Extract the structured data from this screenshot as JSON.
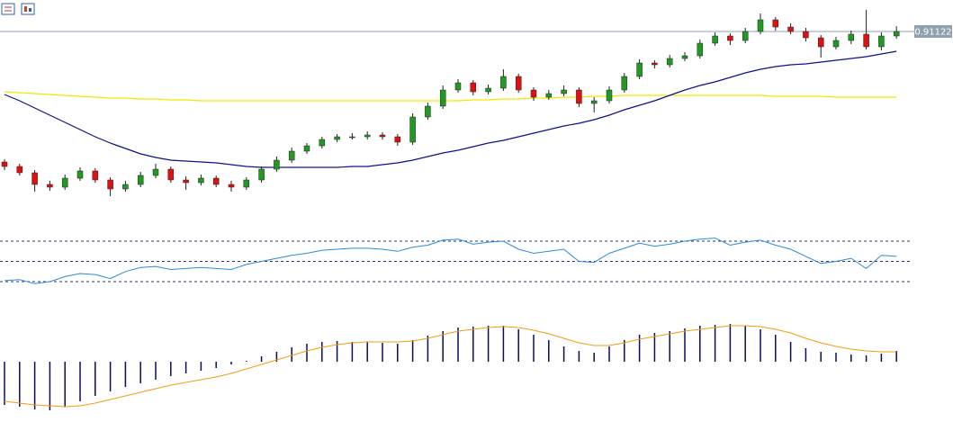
{
  "chart_data": [
    {
      "type": "candlestick",
      "open": [
        0.90397,
        0.90372,
        0.90337,
        0.90272,
        0.90257,
        0.90307,
        0.90347,
        0.90297,
        0.90247,
        0.90272,
        0.90322,
        0.90357,
        0.90297,
        0.90282,
        0.90307,
        0.90272,
        0.90257,
        0.90297,
        0.90357,
        0.90407,
        0.90457,
        0.90487,
        0.90522,
        0.90537,
        0.90537,
        0.90547,
        0.90537,
        0.90507,
        0.90647,
        0.90707,
        0.90797,
        0.90837,
        0.90787,
        0.90807,
        0.90872,
        0.90797,
        0.90757,
        0.90777,
        0.90797,
        0.90722,
        0.90737,
        0.90797,
        0.90872,
        0.90947,
        0.90937,
        0.90972,
        0.90987,
        0.91057,
        0.91097,
        0.91072,
        0.91122,
        0.91187,
        0.91147,
        0.91122,
        0.91087,
        0.91037,
        0.91072,
        0.91107,
        0.91037,
        0.91097
      ],
      "high": [
        0.90412,
        0.90387,
        0.90352,
        0.90292,
        0.90327,
        0.90367,
        0.90362,
        0.90312,
        0.90292,
        0.90342,
        0.90387,
        0.90372,
        0.90317,
        0.90327,
        0.90322,
        0.90292,
        0.90312,
        0.90372,
        0.90427,
        0.90477,
        0.90502,
        0.90537,
        0.90552,
        0.90557,
        0.90567,
        0.90562,
        0.90552,
        0.90667,
        0.90727,
        0.90822,
        0.90857,
        0.90852,
        0.90827,
        0.90912,
        0.90887,
        0.90812,
        0.90797,
        0.90822,
        0.90812,
        0.90757,
        0.90817,
        0.90892,
        0.90967,
        0.90962,
        0.90992,
        0.91007,
        0.91077,
        0.91117,
        0.91112,
        0.91142,
        0.91222,
        0.91202,
        0.91167,
        0.91142,
        0.91102,
        0.91092,
        0.91127,
        0.91242,
        0.91117,
        0.91152
      ],
      "low": [
        0.90352,
        0.90322,
        0.90232,
        0.90237,
        0.90242,
        0.90292,
        0.90282,
        0.90207,
        0.90232,
        0.90257,
        0.90307,
        0.90282,
        0.90242,
        0.90267,
        0.90257,
        0.90232,
        0.90242,
        0.90282,
        0.90342,
        0.90392,
        0.90442,
        0.90472,
        0.90507,
        0.90522,
        0.90522,
        0.90522,
        0.90487,
        0.90492,
        0.90632,
        0.90692,
        0.90782,
        0.90767,
        0.90772,
        0.90792,
        0.90782,
        0.90737,
        0.90742,
        0.90762,
        0.90702,
        0.90672,
        0.90722,
        0.90782,
        0.90857,
        0.90917,
        0.90922,
        0.90957,
        0.90972,
        0.91042,
        0.91047,
        0.91057,
        0.91107,
        0.91127,
        0.91107,
        0.91067,
        0.90977,
        0.91022,
        0.91052,
        0.91022,
        0.91017,
        0.91082
      ],
      "close": [
        0.90372,
        0.90337,
        0.90272,
        0.90257,
        0.90307,
        0.90347,
        0.90297,
        0.90247,
        0.90272,
        0.90322,
        0.90357,
        0.90297,
        0.90282,
        0.90307,
        0.90272,
        0.90257,
        0.90297,
        0.90357,
        0.90407,
        0.90457,
        0.90487,
        0.90522,
        0.90537,
        0.90537,
        0.90547,
        0.90537,
        0.90507,
        0.90647,
        0.90707,
        0.90797,
        0.90837,
        0.90787,
        0.90807,
        0.90872,
        0.90797,
        0.90757,
        0.90777,
        0.90797,
        0.90722,
        0.90737,
        0.90797,
        0.90872,
        0.90947,
        0.90937,
        0.90972,
        0.90987,
        0.91057,
        0.91097,
        0.91072,
        0.91122,
        0.91187,
        0.91147,
        0.91122,
        0.91087,
        0.91037,
        0.91072,
        0.91107,
        0.91037,
        0.91097,
        0.91122
      ],
      "up_color": "#229922",
      "down_color": "#e01010",
      "wick_color": "#222222",
      "ylim": [
        0.90147,
        0.91297
      ],
      "current_price": 0.91122,
      "current_price_color": "#8fa0b0",
      "overlays": [
        {
          "color": "#f5e600",
          "values": [
            0.90787,
            0.90782,
            0.90777,
            0.90772,
            0.90767,
            0.90762,
            0.90757,
            0.90752,
            0.90752,
            0.90747,
            0.90747,
            0.90742,
            0.90742,
            0.90737,
            0.90737,
            0.90737,
            0.90737,
            0.90737,
            0.90737,
            0.90737,
            0.90737,
            0.90737,
            0.90737,
            0.90737,
            0.90737,
            0.90737,
            0.90737,
            0.90737,
            0.90737,
            0.90737,
            0.90737,
            0.90742,
            0.90742,
            0.90747,
            0.90747,
            0.90752,
            0.90752,
            0.90757,
            0.90757,
            0.90762,
            0.90762,
            0.90767,
            0.90767,
            0.90767,
            0.90767,
            0.90767,
            0.90767,
            0.90767,
            0.90767,
            0.90767,
            0.90767,
            0.90762,
            0.90762,
            0.90762,
            0.90762,
            0.90757,
            0.90757,
            0.90757,
            0.90757,
            0.90757
          ]
        },
        {
          "color": "#10108c",
          "values": [
            0.90772,
            0.90737,
            0.90697,
            0.90657,
            0.90617,
            0.90577,
            0.90537,
            0.90502,
            0.90472,
            0.90442,
            0.90422,
            0.90407,
            0.90402,
            0.90397,
            0.90392,
            0.90382,
            0.90372,
            0.90367,
            0.90367,
            0.90367,
            0.90367,
            0.90367,
            0.90367,
            0.90372,
            0.90372,
            0.90382,
            0.90392,
            0.90407,
            0.90427,
            0.90447,
            0.90462,
            0.90482,
            0.90502,
            0.90517,
            0.90537,
            0.90557,
            0.90577,
            0.90597,
            0.90612,
            0.90632,
            0.90657,
            0.90687,
            0.90712,
            0.90737,
            0.90767,
            0.90797,
            0.90822,
            0.90842,
            0.90867,
            0.90892,
            0.90912,
            0.90927,
            0.90937,
            0.90942,
            0.90952,
            0.90962,
            0.90972,
            0.90982,
            0.90997,
            0.91012
          ]
        }
      ]
    },
    {
      "type": "line",
      "values": [
        31,
        32,
        28,
        30,
        35,
        38,
        37,
        33,
        40,
        44,
        45,
        42,
        43,
        44,
        43,
        42,
        47,
        50,
        53,
        56,
        58,
        61,
        62,
        63,
        63,
        62,
        60,
        64,
        66,
        71,
        72,
        67,
        69,
        70,
        62,
        58,
        60,
        62,
        50,
        49,
        58,
        63,
        68,
        65,
        67,
        70,
        72,
        73,
        66,
        69,
        71,
        66,
        62,
        55,
        48,
        50,
        53,
        43,
        56,
        55
      ],
      "color": "#2a8be0",
      "ylim": [
        20,
        80
      ],
      "levels": [
        30,
        50,
        70
      ],
      "level_color": "#333366"
    },
    {
      "type": "macd",
      "values": [
        -0.00096,
        -0.001,
        -0.00106,
        -0.00108,
        -0.001,
        -0.00088,
        -0.00076,
        -0.00066,
        -0.00056,
        -0.00048,
        -0.0004,
        -0.00032,
        -0.00026,
        -0.0002,
        -0.00014,
        -6e-05,
        2e-05,
        0.00012,
        0.00022,
        0.00032,
        0.0004,
        0.00044,
        0.00046,
        0.00044,
        0.00044,
        0.00042,
        0.0004,
        0.00048,
        0.00058,
        0.00068,
        0.00076,
        0.00078,
        0.0008,
        0.0008,
        0.00072,
        0.0006,
        0.00048,
        0.00034,
        0.00024,
        0.0002,
        0.00034,
        0.00048,
        0.0006,
        0.00064,
        0.00068,
        0.00074,
        0.0008,
        0.00082,
        0.00084,
        0.0008,
        0.00072,
        0.0006,
        0.00044,
        0.0003,
        0.00022,
        0.0002,
        0.00016,
        0.00014,
        0.00018,
        0.00024
      ],
      "color": "#0c0c5a",
      "signal": {
        "color": "#f39c12",
        "values": [
          -0.00088,
          -0.00092,
          -0.00096,
          -0.00098,
          -0.001,
          -0.00098,
          -0.00092,
          -0.00084,
          -0.00076,
          -0.00068,
          -0.0006,
          -0.00052,
          -0.00046,
          -0.0004,
          -0.00034,
          -0.00026,
          -0.00016,
          -6e-05,
          4e-05,
          0.00014,
          0.00024,
          0.00032,
          0.00038,
          0.00042,
          0.00044,
          0.00044,
          0.00044,
          0.00046,
          0.00052,
          0.0006,
          0.00068,
          0.00072,
          0.00076,
          0.00078,
          0.00076,
          0.0007,
          0.00062,
          0.00052,
          0.00042,
          0.00036,
          0.00036,
          0.00042,
          0.0005,
          0.00056,
          0.00062,
          0.00068,
          0.00072,
          0.00076,
          0.0008,
          0.0008,
          0.00078,
          0.00072,
          0.00064,
          0.00052,
          0.00042,
          0.00034,
          0.00028,
          0.00024,
          0.00022,
          0.00022
        ]
      },
      "ylim": [
        -0.0012,
        0.001
      ]
    }
  ]
}
